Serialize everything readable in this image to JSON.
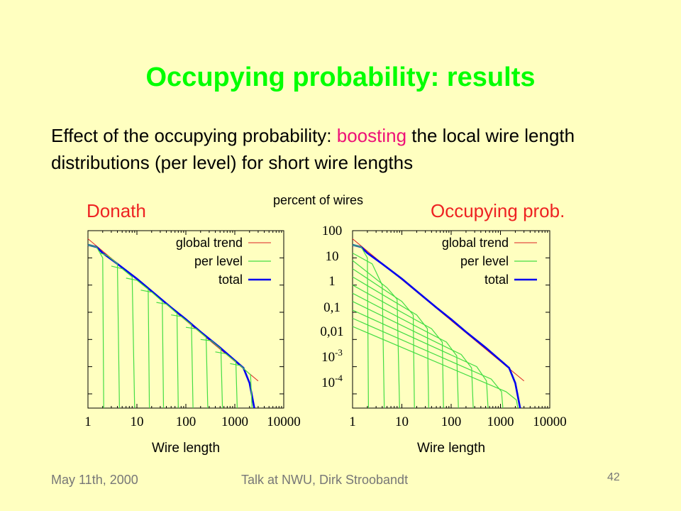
{
  "slide": {
    "title": "Occupying probability: results",
    "subtitle_parts": {
      "pre": "Effect of the occupying probability: ",
      "highlight": "boosting",
      "post": " the local wire length distributions (per level) for short wire lengths"
    },
    "shared_ylabel": "percent of wires",
    "footer_date": "May 11th, 2000",
    "footer_talk": "Talk at NWU, Dirk Stroobandt",
    "page_number": "42"
  },
  "colors": {
    "background": "#FFFFC0",
    "title": "#00FF00",
    "highlight": "#EE1177",
    "global_trend": "#DD2222",
    "per_level": "#44DD44",
    "total": "#0000EE"
  },
  "chart_data": [
    {
      "type": "line",
      "title": "Donath",
      "xlabel": "Wire length",
      "ylabel": "percent of wires",
      "x_scale": "log",
      "y_scale": "log",
      "xlim": [
        1,
        10000
      ],
      "ylim": [
        3e-05,
        100
      ],
      "x_ticks": [
        "1",
        "10",
        "100",
        "1000",
        "10000"
      ],
      "y_ticks": [
        "100",
        "10",
        "1",
        "0,1",
        "0,01",
        "10-3",
        "10-4"
      ],
      "legend_position": "top-right",
      "series": [
        {
          "name": "global trend",
          "x": [
            1,
            3000
          ],
          "y": [
            50,
            0.0003
          ]
        },
        {
          "name": "total",
          "x": [
            1,
            1.5,
            2,
            4,
            10,
            20,
            50,
            100,
            200,
            500,
            1000,
            1500,
            2000,
            2500
          ],
          "y": [
            30,
            25,
            15,
            6,
            1.7,
            0.6,
            0.15,
            0.055,
            0.019,
            0.005,
            0.0017,
            0.0009,
            0.00025,
            3e-05
          ]
        },
        {
          "name": "per level",
          "levels": [
            {
              "x": [
                1,
                1.5,
                2,
                2.1
              ],
              "y": [
                30,
                25,
                10,
                3e-05
              ]
            },
            {
              "x": [
                1.8,
                2.5,
                4,
                4.4
              ],
              "y": [
                15,
                12,
                6,
                3e-05
              ]
            },
            {
              "x": [
                3,
                5,
                8,
                9
              ],
              "y": [
                5,
                4,
                2,
                3e-05
              ]
            },
            {
              "x": [
                6,
                10,
                17,
                18
              ],
              "y": [
                1.8,
                1.5,
                0.7,
                3e-05
              ]
            },
            {
              "x": [
                12,
                20,
                33,
                35
              ],
              "y": [
                0.65,
                0.55,
                0.25,
                3e-05
              ]
            },
            {
              "x": [
                25,
                40,
                66,
                70
              ],
              "y": [
                0.23,
                0.2,
                0.09,
                3e-05
              ]
            },
            {
              "x": [
                50,
                80,
                130,
                140
              ],
              "y": [
                0.08,
                0.07,
                0.035,
                3e-05
              ]
            },
            {
              "x": [
                100,
                160,
                260,
                280
              ],
              "y": [
                0.028,
                0.025,
                0.012,
                3e-05
              ]
            },
            {
              "x": [
                200,
                330,
                520,
                560
              ],
              "y": [
                0.01,
                0.009,
                0.0045,
                3e-05
              ]
            },
            {
              "x": [
                400,
                650,
                1050,
                1120
              ],
              "y": [
                0.0035,
                0.003,
                0.0015,
                3e-05
              ]
            },
            {
              "x": [
                800,
                1300,
                2100,
                2250
              ],
              "y": [
                0.0013,
                0.0011,
                0.0005,
                3e-05
              ]
            }
          ]
        }
      ]
    },
    {
      "type": "line",
      "title": "Occupying prob.",
      "xlabel": "Wire length",
      "ylabel": "percent of wires",
      "x_scale": "log",
      "y_scale": "log",
      "xlim": [
        1,
        10000
      ],
      "ylim": [
        3e-05,
        100
      ],
      "x_ticks": [
        "1",
        "10",
        "100",
        "1000",
        "10000"
      ],
      "y_ticks": [
        "100",
        "10",
        "1",
        "0,1",
        "0,01",
        "10-3",
        "10-4"
      ],
      "legend_position": "top-right",
      "series": [
        {
          "name": "global trend",
          "x": [
            1,
            3000
          ],
          "y": [
            50,
            0.0003
          ]
        },
        {
          "name": "total",
          "x": [
            1,
            1.5,
            2,
            4,
            10,
            20,
            50,
            100,
            200,
            500,
            1000,
            1500,
            2000,
            2500
          ],
          "y": [
            30,
            25,
            15,
            6,
            1.7,
            0.6,
            0.15,
            0.055,
            0.019,
            0.005,
            0.0017,
            0.0009,
            0.00025,
            3e-05
          ]
        },
        {
          "name": "per level",
          "levels": [
            {
              "x": [
                1,
                1.5,
                2,
                2.1
              ],
              "y": [
                30,
                25,
                10,
                3e-05
              ]
            },
            {
              "x": [
                1,
                2.5,
                4,
                4.4
              ],
              "y": [
                15,
                6,
                1,
                3e-05
              ]
            },
            {
              "x": [
                1,
                5,
                8,
                9
              ],
              "y": [
                8,
                0.8,
                0.3,
                3e-05
              ]
            },
            {
              "x": [
                1,
                10,
                17,
                18
              ],
              "y": [
                4,
                0.25,
                0.08,
                3e-05
              ]
            },
            {
              "x": [
                1,
                20,
                33,
                35
              ],
              "y": [
                2,
                0.08,
                0.025,
                3e-05
              ]
            },
            {
              "x": [
                1,
                40,
                66,
                70
              ],
              "y": [
                1,
                0.025,
                0.008,
                3e-05
              ]
            },
            {
              "x": [
                1,
                80,
                130,
                140
              ],
              "y": [
                0.5,
                0.008,
                0.0025,
                3e-05
              ]
            },
            {
              "x": [
                1,
                160,
                260,
                280
              ],
              "y": [
                0.25,
                0.0028,
                0.0009,
                3e-05
              ]
            },
            {
              "x": [
                1,
                330,
                520,
                560
              ],
              "y": [
                0.12,
                0.001,
                0.0003,
                3e-05
              ]
            },
            {
              "x": [
                1,
                650,
                1050,
                1120
              ],
              "y": [
                0.06,
                0.00035,
                0.00012,
                3e-05
              ]
            },
            {
              "x": [
                1,
                1300,
                2100,
                2250
              ],
              "y": [
                0.03,
                0.00012,
                6e-05,
                3e-05
              ]
            }
          ]
        }
      ]
    }
  ]
}
